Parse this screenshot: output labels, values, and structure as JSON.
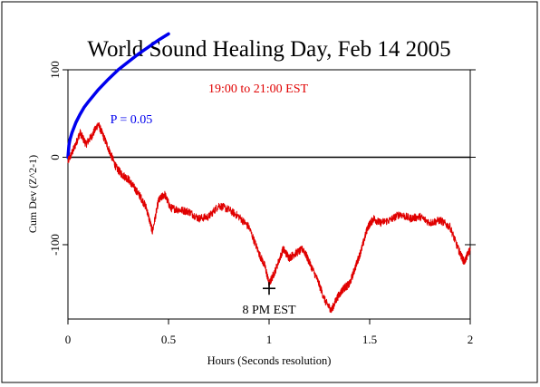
{
  "chart_data": {
    "type": "line",
    "title": "World Sound Healing Day, Feb 14 2005",
    "subtitle": "19:00 to 21:00 EST",
    "xlabel": "Hours (Seconds resolution)",
    "ylabel": "Cum Dev (Z^2-1)",
    "xlim": [
      0,
      2
    ],
    "ylim": [
      -185,
      100
    ],
    "x_ticks": [
      {
        "value": 0,
        "label": "0"
      },
      {
        "value": 0.5,
        "label": "0.5"
      },
      {
        "value": 1,
        "label": "1"
      },
      {
        "value": 1.5,
        "label": "1.5"
      },
      {
        "value": 2,
        "label": "2"
      }
    ],
    "y_ticks": [
      {
        "value": 100,
        "label": "100"
      },
      {
        "value": 0,
        "label": "0"
      },
      {
        "value": -100,
        "label": "-100"
      }
    ],
    "grid": false,
    "series": [
      {
        "name": "Cumulative deviation",
        "color": "#e00000",
        "x": [
          0,
          0.03,
          0.06,
          0.09,
          0.12,
          0.15,
          0.18,
          0.21,
          0.24,
          0.27,
          0.3,
          0.33,
          0.36,
          0.39,
          0.42,
          0.45,
          0.48,
          0.51,
          0.55,
          0.6,
          0.65,
          0.7,
          0.75,
          0.8,
          0.85,
          0.9,
          0.95,
          0.98,
          1.0,
          1.03,
          1.07,
          1.1,
          1.13,
          1.17,
          1.2,
          1.24,
          1.28,
          1.31,
          1.34,
          1.37,
          1.4,
          1.43,
          1.46,
          1.49,
          1.52,
          1.55,
          1.6,
          1.65,
          1.7,
          1.75,
          1.8,
          1.85,
          1.9,
          1.94,
          1.97,
          2.0
        ],
        "y": [
          -5,
          10,
          28,
          15,
          25,
          38,
          22,
          5,
          -12,
          -20,
          -25,
          -35,
          -45,
          -58,
          -85,
          -50,
          -42,
          -58,
          -60,
          -62,
          -70,
          -68,
          -55,
          -60,
          -68,
          -80,
          -110,
          -125,
          -145,
          -130,
          -105,
          -115,
          -110,
          -105,
          -120,
          -140,
          -165,
          -175,
          -160,
          -150,
          -145,
          -125,
          -105,
          -80,
          -70,
          -75,
          -72,
          -65,
          -70,
          -68,
          -75,
          -72,
          -80,
          -105,
          -120,
          -105
        ]
      }
    ],
    "reference_lines": [
      {
        "y": 0,
        "color": "#000000"
      }
    ],
    "significance_curve": {
      "label": "P = 0.05",
      "color": "#0000ee",
      "x": [
        0,
        0.005,
        0.01,
        0.02,
        0.04,
        0.06,
        0.08,
        0.1,
        0.15,
        0.2,
        0.25,
        0.3,
        0.35,
        0.4,
        0.45,
        0.5
      ],
      "y": [
        0,
        14,
        20,
        28,
        40,
        49,
        57,
        63,
        77,
        89,
        100,
        109,
        118,
        126,
        134,
        141
      ]
    },
    "annotations": [
      {
        "text": "8 PM EST",
        "marker": "+",
        "x": 1.0,
        "y": -150,
        "color": "#000000"
      }
    ]
  }
}
